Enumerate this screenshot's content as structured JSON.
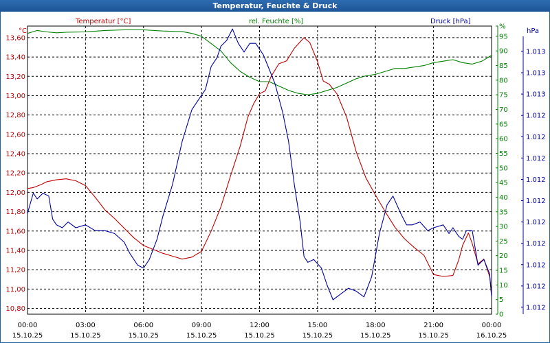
{
  "window": {
    "title": "Temperatur, Feuchte & Druck"
  },
  "chart_data": {
    "type": "line",
    "title": "Temperatur, Feuchte & Druck",
    "grid": true,
    "colors": {
      "temperature": "#c00000",
      "humidity": "#008000",
      "pressure": "#0000a0",
      "grid": "#000000"
    },
    "legend": {
      "temperature": "Temperatur [°C]",
      "humidity": "rel. Feuchte [%]",
      "pressure": "Druck [hPa]"
    },
    "axes": {
      "left": {
        "unit": "°C",
        "min": 10.74,
        "max": 13.72,
        "ticks": [
          "10,80",
          "11,00",
          "11,20",
          "11,40",
          "11,60",
          "11,80",
          "12,00",
          "12,20",
          "12,40",
          "12,60",
          "12,80",
          "13,00",
          "13,20",
          "13,40",
          "13,60"
        ],
        "tick_values": [
          10.8,
          11.0,
          11.2,
          11.4,
          11.6,
          11.8,
          12.0,
          12.2,
          12.4,
          12.6,
          12.8,
          13.0,
          13.2,
          13.4,
          13.6
        ]
      },
      "right_humidity": {
        "unit": "%",
        "min": 0,
        "max": 98.5,
        "ticks": [
          "0",
          "5",
          "10",
          "15",
          "20",
          "25",
          "30",
          "35",
          "40",
          "45",
          "50",
          "55",
          "60",
          "65",
          "70",
          "75",
          "80",
          "85",
          "90",
          "95",
          "%"
        ],
        "tick_values": [
          0,
          5,
          10,
          15,
          20,
          25,
          30,
          35,
          40,
          45,
          50,
          55,
          60,
          65,
          70,
          75,
          80,
          85,
          90,
          95,
          98.5
        ]
      },
      "right_pressure": {
        "unit": "hPa",
        "ticks": [
          "1.012",
          "1.012",
          "1.012",
          "1.012",
          "1.012",
          "1.012",
          "1.012",
          "1.012",
          "1.012",
          "1.012",
          "1.012",
          "1.013",
          "1.013",
          "1.013",
          "1.013",
          "1.013"
        ],
        "tick_values": [
          -0.05,
          0.024,
          0.098,
          0.172,
          0.246,
          0.32,
          0.394,
          0.468,
          0.542,
          0.616,
          0.69,
          0.764,
          0.838,
          0.912,
          0.986,
          1.06
        ]
      },
      "x": {
        "min": 0,
        "max": 24,
        "ticks": [
          {
            "time": "00:00",
            "date": "15.10.25",
            "h": 0
          },
          {
            "time": "03:00",
            "date": "15.10.25",
            "h": 3
          },
          {
            "time": "06:00",
            "date": "15.10.25",
            "h": 6
          },
          {
            "time": "09:00",
            "date": "15.10.25",
            "h": 9
          },
          {
            "time": "12:00",
            "date": "15.10.25",
            "h": 12
          },
          {
            "time": "15:00",
            "date": "15.10.25",
            "h": 15
          },
          {
            "time": "18:00",
            "date": "15.10.25",
            "h": 18
          },
          {
            "time": "21:00",
            "date": "15.10.25",
            "h": 21
          },
          {
            "time": "00:00",
            "date": "16.10.25",
            "h": 24
          }
        ]
      }
    },
    "series": [
      {
        "name": "Temperatur [°C]",
        "key": "temperature",
        "axis": "left",
        "points": [
          [
            0,
            12.04
          ],
          [
            0.3,
            12.05
          ],
          [
            0.7,
            12.08
          ],
          [
            1,
            12.11
          ],
          [
            1.5,
            12.13
          ],
          [
            2,
            12.14
          ],
          [
            2.5,
            12.12
          ],
          [
            3,
            12.07
          ],
          [
            3.5,
            11.95
          ],
          [
            4,
            11.82
          ],
          [
            4.5,
            11.73
          ],
          [
            5,
            11.63
          ],
          [
            5.5,
            11.53
          ],
          [
            6,
            11.45
          ],
          [
            6.5,
            11.41
          ],
          [
            7,
            11.37
          ],
          [
            7.5,
            11.34
          ],
          [
            8,
            11.31
          ],
          [
            8.5,
            11.33
          ],
          [
            9,
            11.39
          ],
          [
            9.5,
            11.6
          ],
          [
            10,
            11.85
          ],
          [
            10.5,
            12.17
          ],
          [
            11,
            12.48
          ],
          [
            11.4,
            12.78
          ],
          [
            11.7,
            12.92
          ],
          [
            12,
            13.02
          ],
          [
            12.3,
            13.05
          ],
          [
            12.6,
            13.2
          ],
          [
            13,
            13.33
          ],
          [
            13.4,
            13.36
          ],
          [
            13.8,
            13.49
          ],
          [
            14.3,
            13.6
          ],
          [
            14.6,
            13.55
          ],
          [
            15,
            13.35
          ],
          [
            15.3,
            13.15
          ],
          [
            15.6,
            13.12
          ],
          [
            16,
            13.02
          ],
          [
            16.5,
            12.78
          ],
          [
            17,
            12.42
          ],
          [
            17.5,
            12.15
          ],
          [
            18,
            11.97
          ],
          [
            18.5,
            11.8
          ],
          [
            19,
            11.64
          ],
          [
            19.5,
            11.52
          ],
          [
            20,
            11.43
          ],
          [
            20.5,
            11.35
          ],
          [
            21,
            11.15
          ],
          [
            21.5,
            11.13
          ],
          [
            22,
            11.14
          ],
          [
            22.3,
            11.3
          ],
          [
            22.5,
            11.45
          ],
          [
            22.8,
            11.58
          ],
          [
            23,
            11.47
          ],
          [
            23.3,
            11.26
          ],
          [
            23.6,
            11.31
          ],
          [
            23.9,
            11.13
          ],
          [
            24,
            10.95
          ]
        ]
      },
      {
        "name": "rel. Feuchte [%]",
        "key": "humidity",
        "axis": "right_humidity",
        "points": [
          [
            0,
            96
          ],
          [
            0.5,
            97
          ],
          [
            1,
            96.5
          ],
          [
            1.5,
            96.2
          ],
          [
            2,
            96.4
          ],
          [
            3,
            96.5
          ],
          [
            4,
            97
          ],
          [
            5,
            97.2
          ],
          [
            6,
            97.2
          ],
          [
            7,
            96.8
          ],
          [
            8,
            96.6
          ],
          [
            8.5,
            96
          ],
          [
            9,
            95
          ],
          [
            9.5,
            92.5
          ],
          [
            10,
            90
          ],
          [
            10.5,
            86
          ],
          [
            11,
            83
          ],
          [
            11.5,
            81
          ],
          [
            12,
            79.5
          ],
          [
            12.5,
            79.5
          ],
          [
            13,
            78
          ],
          [
            13.5,
            76.5
          ],
          [
            14,
            75.5
          ],
          [
            14.5,
            75
          ],
          [
            15,
            75.5
          ],
          [
            15.5,
            76.5
          ],
          [
            16,
            77.5
          ],
          [
            16.5,
            79
          ],
          [
            17,
            80.5
          ],
          [
            17.5,
            81.5
          ],
          [
            18,
            82
          ],
          [
            18.5,
            83
          ],
          [
            19,
            84
          ],
          [
            19.5,
            84
          ],
          [
            20,
            84.5
          ],
          [
            20.5,
            85
          ],
          [
            21,
            86
          ],
          [
            21.5,
            86.5
          ],
          [
            22,
            87
          ],
          [
            22.5,
            86
          ],
          [
            23,
            85.5
          ],
          [
            23.5,
            86.5
          ],
          [
            24,
            88.5
          ]
        ]
      },
      {
        "name": "Druck [hPa]",
        "key": "pressure",
        "axis": "right_pressure",
        "points": [
          [
            0,
            0.35
          ],
          [
            0.3,
            0.42
          ],
          [
            0.5,
            0.4
          ],
          [
            0.8,
            0.42
          ],
          [
            1.1,
            0.41
          ],
          [
            1.3,
            0.33
          ],
          [
            1.5,
            0.31
          ],
          [
            1.8,
            0.3
          ],
          [
            2.1,
            0.32
          ],
          [
            2.5,
            0.3
          ],
          [
            3,
            0.31
          ],
          [
            3.5,
            0.29
          ],
          [
            4,
            0.29
          ],
          [
            4.5,
            0.28
          ],
          [
            5,
            0.25
          ],
          [
            5.3,
            0.21
          ],
          [
            5.7,
            0.17
          ],
          [
            6,
            0.16
          ],
          [
            6.3,
            0.19
          ],
          [
            6.7,
            0.26
          ],
          [
            7,
            0.34
          ],
          [
            7.5,
            0.45
          ],
          [
            8,
            0.6
          ],
          [
            8.5,
            0.71
          ],
          [
            9,
            0.76
          ],
          [
            9.2,
            0.78
          ],
          [
            9.5,
            0.86
          ],
          [
            9.8,
            0.89
          ],
          [
            10,
            0.93
          ],
          [
            10.3,
            0.95
          ],
          [
            10.6,
            0.99
          ],
          [
            10.9,
            0.94
          ],
          [
            11.2,
            0.91
          ],
          [
            11.5,
            0.94
          ],
          [
            11.8,
            0.94
          ],
          [
            12.2,
            0.9
          ],
          [
            12.5,
            0.85
          ],
          [
            12.8,
            0.8
          ],
          [
            13.2,
            0.7
          ],
          [
            13.5,
            0.6
          ],
          [
            13.8,
            0.45
          ],
          [
            14.1,
            0.32
          ],
          [
            14.3,
            0.2
          ],
          [
            14.5,
            0.18
          ],
          [
            14.8,
            0.19
          ],
          [
            15.2,
            0.16
          ],
          [
            15.5,
            0.1
          ],
          [
            15.8,
            0.05
          ],
          [
            16.2,
            0.07
          ],
          [
            16.6,
            0.09
          ],
          [
            17,
            0.08
          ],
          [
            17.4,
            0.06
          ],
          [
            17.8,
            0.13
          ],
          [
            18.2,
            0.28
          ],
          [
            18.6,
            0.38
          ],
          [
            18.9,
            0.41
          ],
          [
            19.3,
            0.35
          ],
          [
            19.6,
            0.31
          ],
          [
            19.9,
            0.31
          ],
          [
            20.3,
            0.32
          ],
          [
            20.7,
            0.29
          ],
          [
            21,
            0.3
          ],
          [
            21.5,
            0.31
          ],
          [
            21.8,
            0.28
          ],
          [
            22,
            0.3
          ],
          [
            22.3,
            0.27
          ],
          [
            22.5,
            0.26
          ],
          [
            22.7,
            0.29
          ],
          [
            23,
            0.29
          ],
          [
            23.3,
            0.17
          ],
          [
            23.6,
            0.19
          ],
          [
            23.9,
            0.14
          ],
          [
            24,
            0.06
          ]
        ]
      }
    ]
  }
}
